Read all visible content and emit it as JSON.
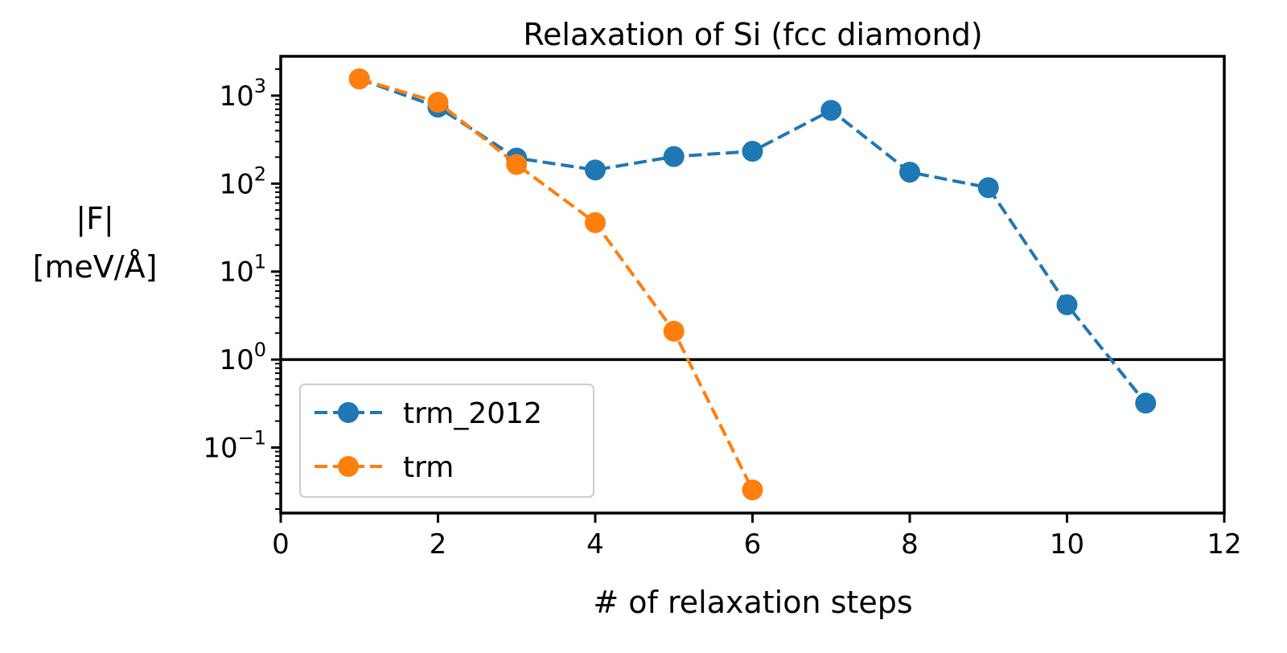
{
  "chart_data": {
    "type": "line",
    "title": "Relaxation of Si (fcc diamond)",
    "xlabel": "# of relaxation steps",
    "ylabel_line1": "|F|",
    "ylabel_line2": "[meV/Å]",
    "xlim": [
      0,
      12
    ],
    "ylim": [
      0.018,
      2800
    ],
    "yscale": "log",
    "grid": false,
    "legend_position": "lower-left",
    "reference_line": {
      "y": 1
    },
    "xticks": [
      0,
      2,
      4,
      6,
      8,
      10,
      12
    ],
    "xtick_labels": [
      "0",
      "2",
      "4",
      "6",
      "8",
      "10",
      "12"
    ],
    "ytick_decades": [
      {
        "value": 0.1,
        "base": "10",
        "exp": "−1"
      },
      {
        "value": 1,
        "base": "10",
        "exp": "0"
      },
      {
        "value": 10,
        "base": "10",
        "exp": "1"
      },
      {
        "value": 100,
        "base": "10",
        "exp": "2"
      },
      {
        "value": 1000,
        "base": "10",
        "exp": "3"
      }
    ],
    "series": [
      {
        "name": "trm_2012",
        "color": "#1f77b4",
        "x": [
          1,
          2,
          3,
          4,
          5,
          6,
          7,
          8,
          9,
          10,
          11
        ],
        "y": [
          1550,
          740,
          195,
          143,
          203,
          233,
          680,
          135,
          90,
          4.2,
          0.32
        ]
      },
      {
        "name": "trm",
        "color": "#ff7f0e",
        "x": [
          1,
          2,
          3,
          4,
          5,
          6
        ],
        "y": [
          1550,
          840,
          165,
          36,
          2.1,
          0.033
        ]
      }
    ]
  }
}
